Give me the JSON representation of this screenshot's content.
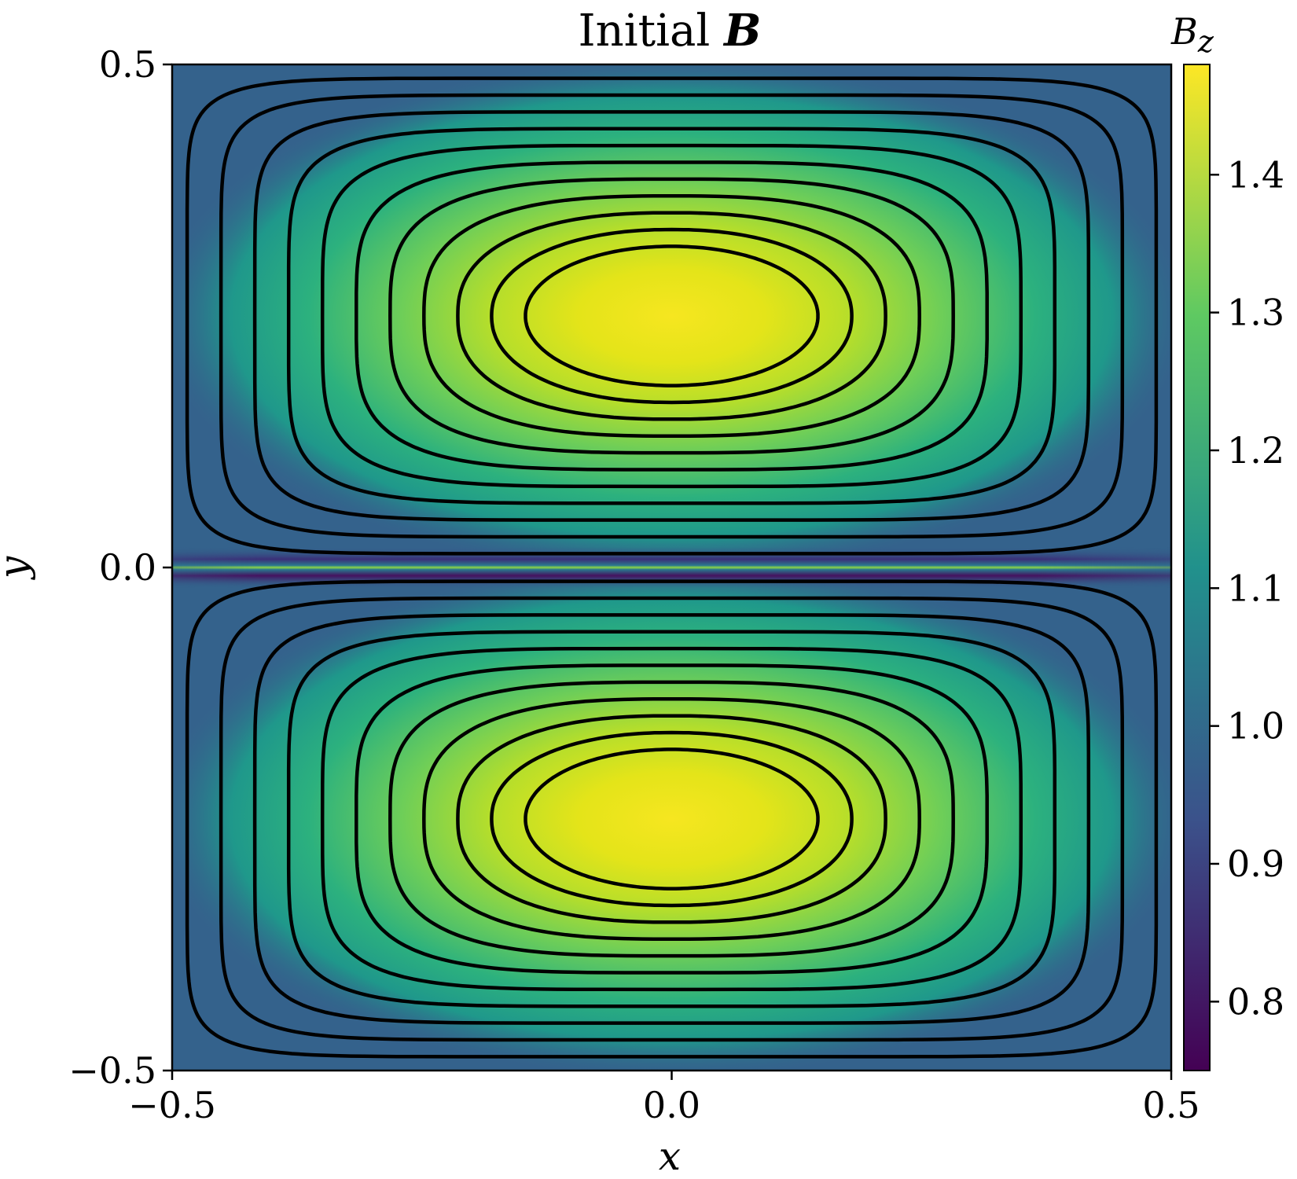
{
  "chart_data": {
    "type": "heatmap",
    "title": "Initial",
    "title_symbol": "B",
    "xlabel": "x",
    "ylabel": "y",
    "xlim": [
      -0.5,
      0.5
    ],
    "ylim": [
      -0.5,
      0.5
    ],
    "x_ticks": [
      "−0.5",
      "0.0",
      "0.5"
    ],
    "y_ticks": [
      "0.5",
      "0.0",
      "−0.5"
    ],
    "colorbar": {
      "label_base": "B",
      "label_sub": "z",
      "range": [
        0.75,
        1.48
      ],
      "ticks": [
        "0.8",
        "0.9",
        "1.0",
        "1.1",
        "1.2",
        "1.3",
        "1.4"
      ],
      "tick_values": [
        0.8,
        0.9,
        1.0,
        1.1,
        1.2,
        1.3,
        1.4
      ],
      "colormap": "viridis",
      "colors": [
        "#440154",
        "#3b528b",
        "#21918c",
        "#5ec962",
        "#fde725"
      ]
    },
    "field": {
      "background_value": 1.0,
      "peak_value": 1.48,
      "peaks": [
        {
          "x": 0.0,
          "y": 0.25
        },
        {
          "x": 0.0,
          "y": -0.25
        }
      ],
      "current_sheet_y": 0.0,
      "current_sheet_center_value": 1.2,
      "current_sheet_edge_value": 0.78
    },
    "contours": {
      "count_per_island": 11,
      "islands": [
        {
          "center_x": 0.0,
          "center_y": 0.25
        },
        {
          "center_x": 0.0,
          "center_y": -0.25
        }
      ]
    }
  }
}
